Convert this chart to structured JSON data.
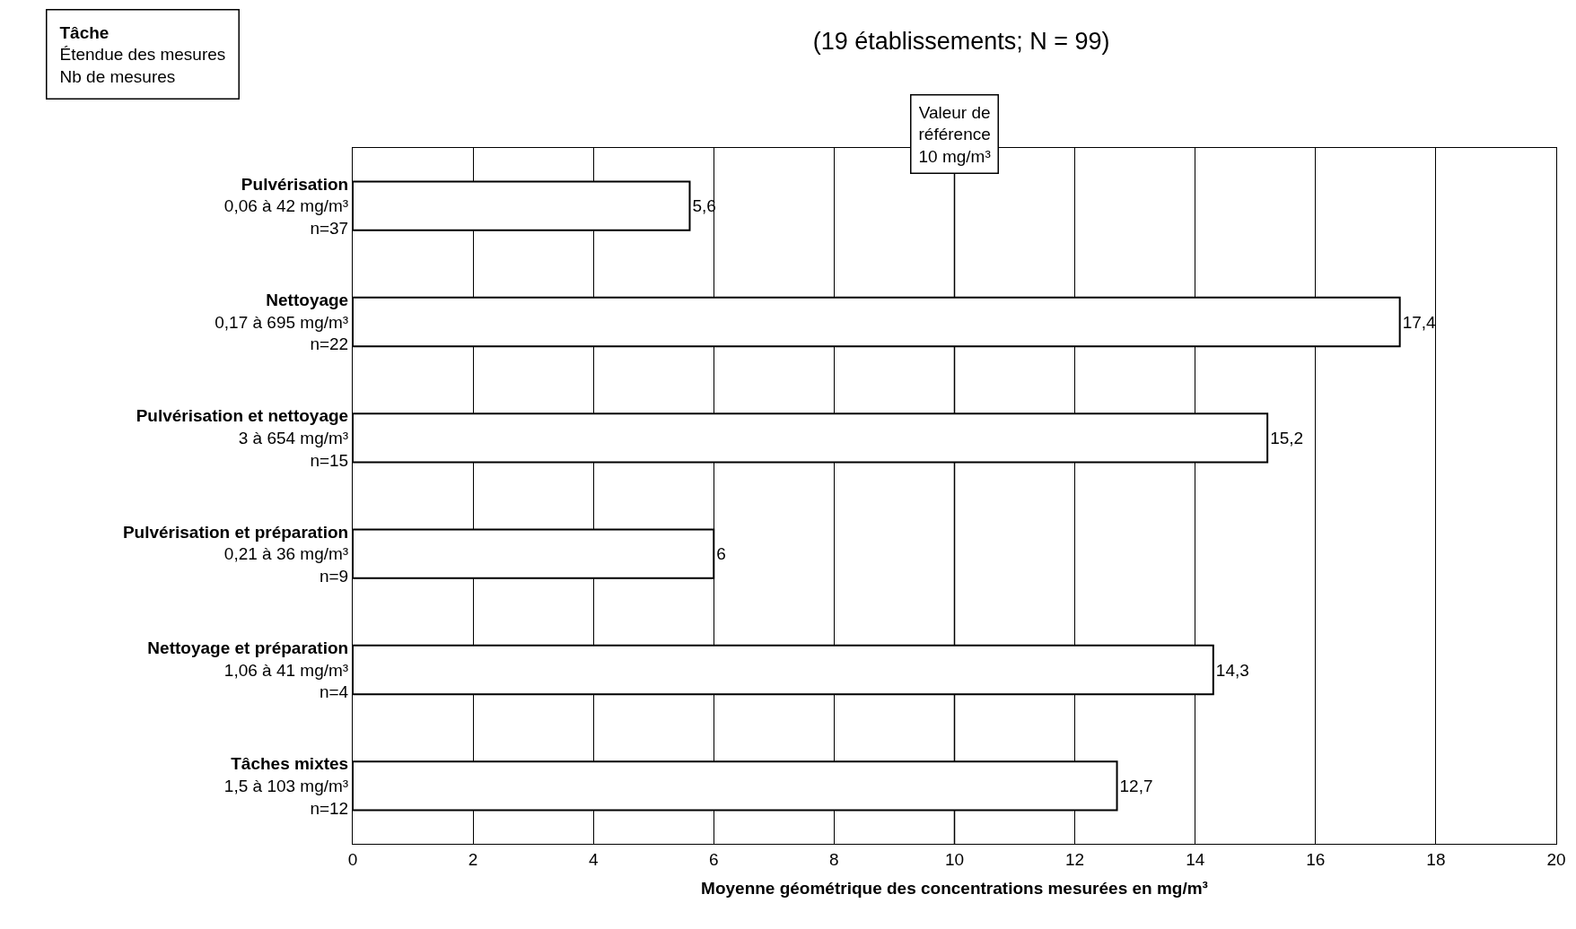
{
  "chart_data": {
    "type": "bar",
    "orientation": "horizontal",
    "title": "(19 établissements; N = 99)",
    "xlabel": "Moyenne géométrique des concentrations mesurées en mg/m³",
    "categories": [
      "Pulvérisation\n0,06 à 42 mg/m³\nn=37",
      "Nettoyage\n0,17 à 695 mg/m³\nn=22",
      "Pulvérisation et nettoyage\n3 à 654 mg/m³\nn=15",
      "Pulvérisation et préparation\n0,21 à 36 mg/m³\nn=9",
      "Nettoyage et préparation\n1,06 à 41 mg/m³\nn=4",
      "Tâches mixtes\n1,5 à 103 mg/m³\nn=12"
    ],
    "values": [
      5.6,
      17.4,
      15.2,
      6,
      14.3,
      12.7
    ],
    "value_labels": [
      "5,6",
      "17,4",
      "15,2",
      "6",
      "14,3",
      "12,7"
    ],
    "color": "#ffffff",
    "xlim": [
      0,
      20
    ],
    "xticks": [
      0,
      2,
      4,
      6,
      8,
      10,
      12,
      14,
      16,
      18,
      20
    ],
    "grid": "x",
    "ref_lines": [
      {
        "axis": "x",
        "value": 10,
        "label": "Valeur de\nréférence\n10 mg/m³",
        "color": "#000000"
      }
    ],
    "annotations": [
      "Tâche\nÉtendue des mesures\nNb de mesures"
    ]
  }
}
